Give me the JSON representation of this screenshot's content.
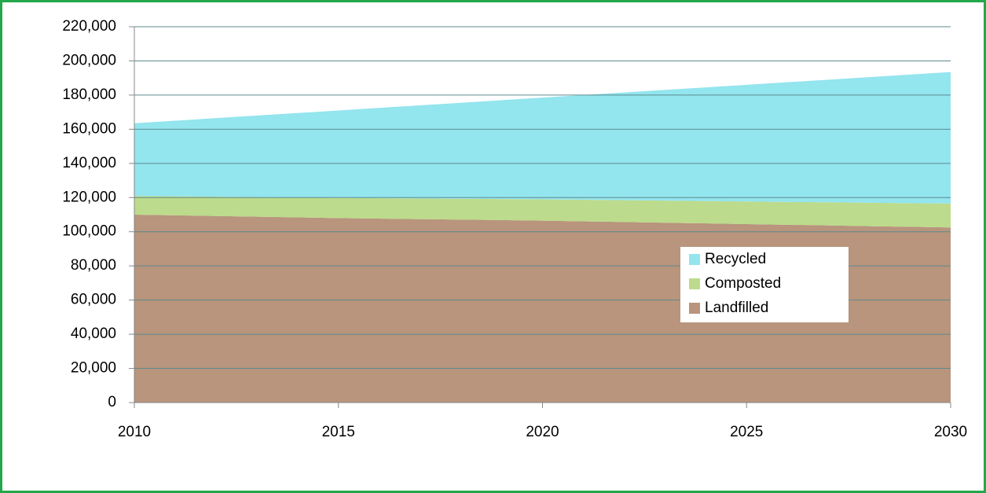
{
  "chart_data": {
    "type": "area",
    "stacked": true,
    "x": [
      2010,
      2015,
      2020,
      2025,
      2030
    ],
    "series": [
      {
        "name": "Landfilled",
        "color": "#b8957c",
        "values": [
          110000,
          108000,
          106500,
          104500,
          102500
        ]
      },
      {
        "name": "Composted",
        "color": "#bcdb8c",
        "values": [
          11000,
          11800,
          12500,
          13200,
          14000
        ]
      },
      {
        "name": "Recycled",
        "color": "#93e5ee",
        "values": [
          42500,
          51200,
          59500,
          68300,
          77000
        ]
      }
    ],
    "xlim": [
      2010,
      2030
    ],
    "xticks": [
      2010,
      2015,
      2020,
      2025,
      2030
    ],
    "ylim": [
      0,
      220000
    ],
    "yticks": [
      0,
      {
        "value": 20000,
        "label": "20,000"
      },
      {
        "value": 40000,
        "label": "40,000"
      },
      {
        "value": 60000,
        "label": "60,000"
      },
      {
        "value": 80000,
        "label": "80,000"
      },
      {
        "value": 100000,
        "label": "100,000"
      },
      {
        "value": 120000,
        "label": "120,000"
      },
      {
        "value": 140000,
        "label": "140,000"
      },
      {
        "value": 160000,
        "label": "160,000"
      },
      {
        "value": 180000,
        "label": "180,000"
      },
      {
        "value": 200000,
        "label": "200,000"
      },
      {
        "value": 220000,
        "label": "220,000"
      }
    ],
    "grid": true,
    "legend": "right"
  }
}
